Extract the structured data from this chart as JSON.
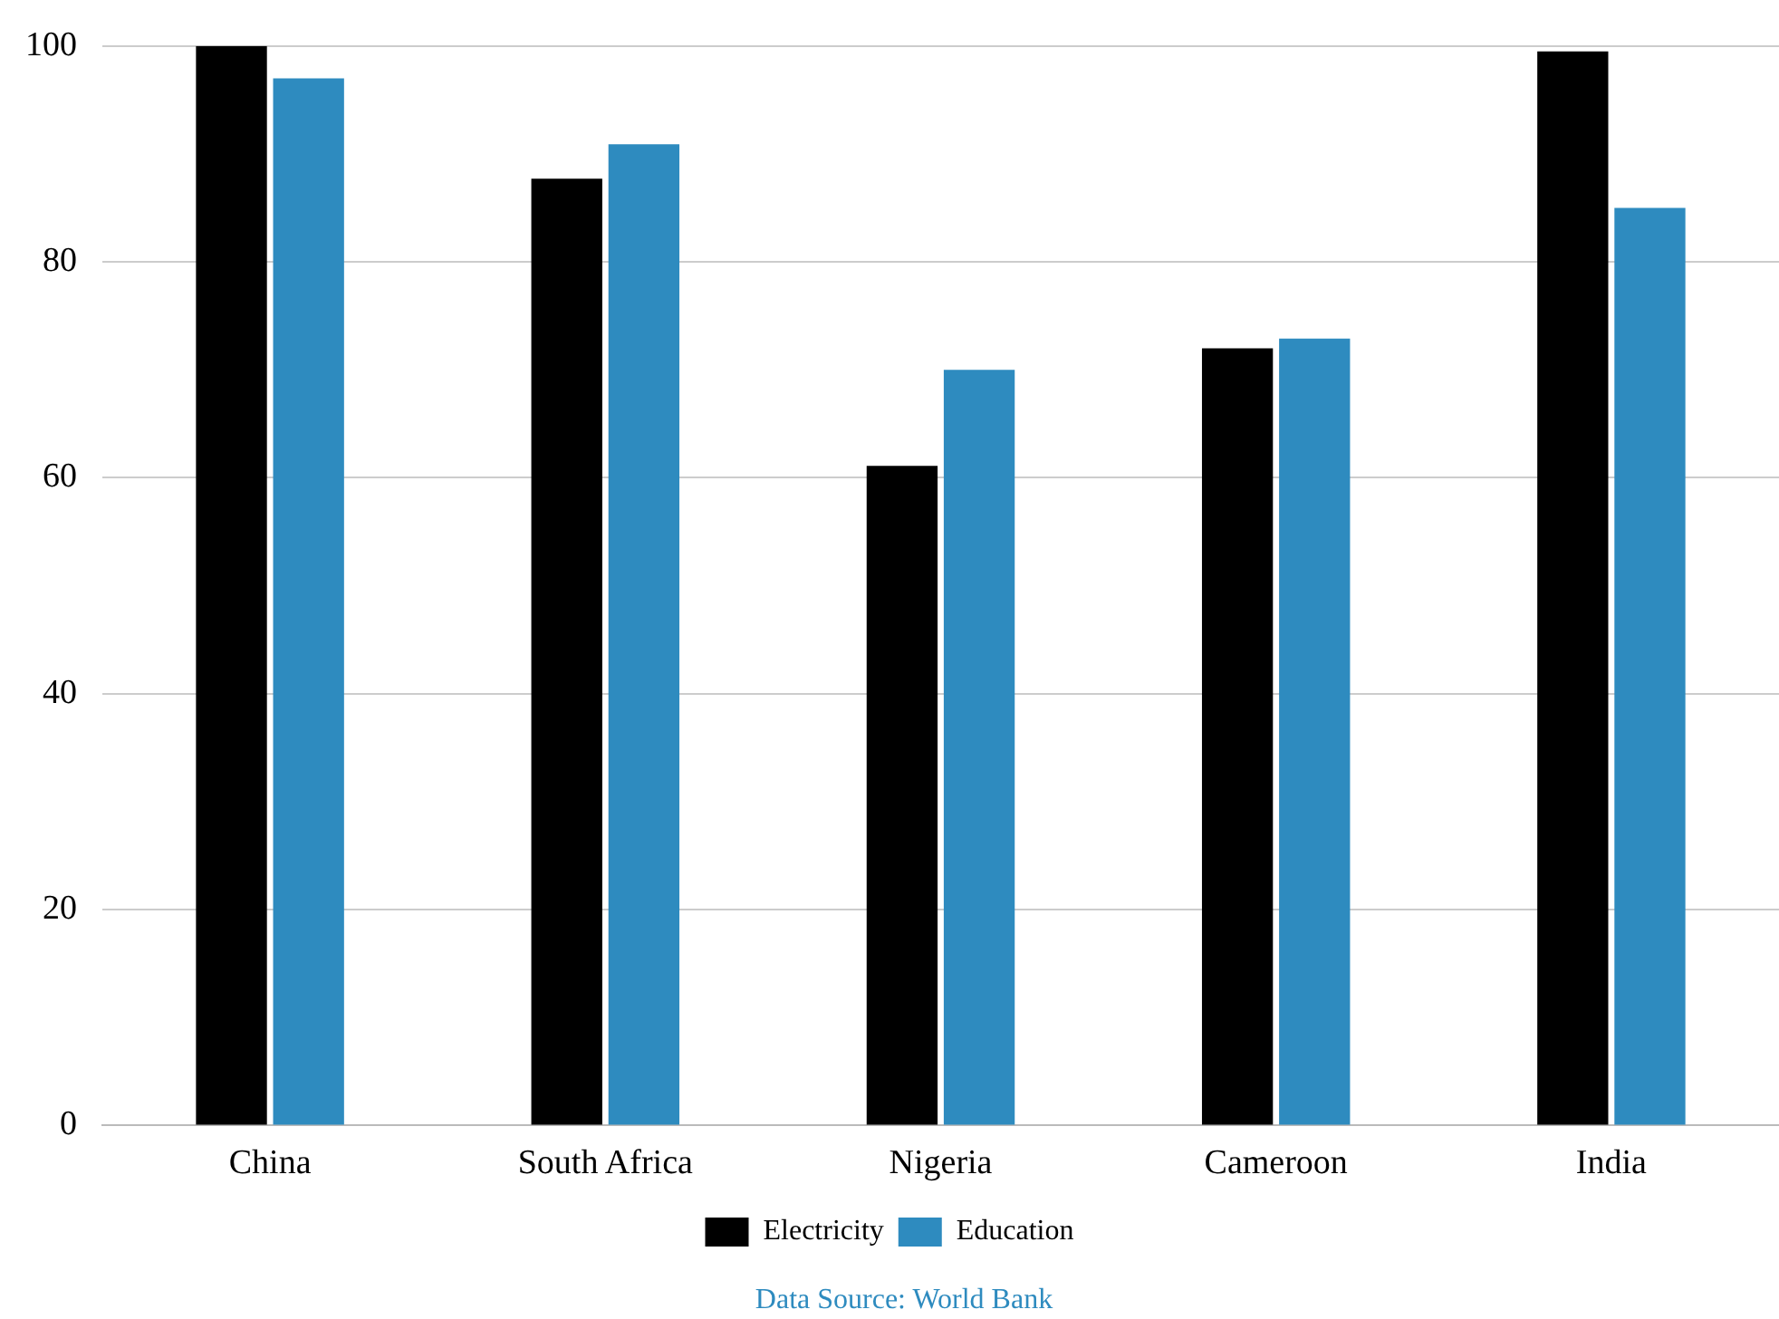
{
  "chart_data": {
    "type": "bar",
    "categories": [
      "China",
      "South Africa",
      "Nigeria",
      "Cameroon",
      "India"
    ],
    "series": [
      {
        "name": "Electricity",
        "color": "#000000",
        "values": [
          100,
          87.7,
          61.1,
          72,
          99.5
        ]
      },
      {
        "name": "Education",
        "color": "#2e8bbf",
        "values": [
          97,
          90.9,
          70,
          72.9,
          85
        ]
      }
    ],
    "ylim": [
      0,
      100
    ],
    "yticks": [
      0,
      20,
      40,
      60,
      80,
      100
    ],
    "grid": "y",
    "legend": "bottom",
    "annotations": [
      "Data Source: World Bank"
    ]
  }
}
